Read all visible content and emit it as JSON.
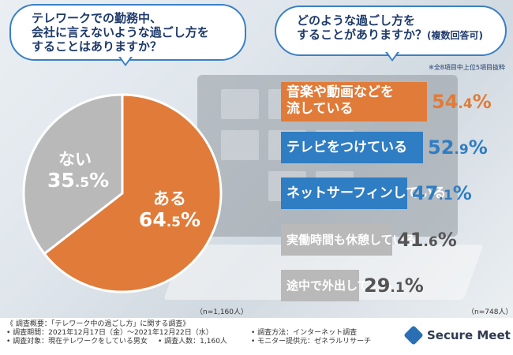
{
  "colors": {
    "accent_orange": "#e07b39",
    "accent_blue": "#2f7dc3",
    "neutral_gray": "#b9b9b9",
    "value_orange": "#e07b39",
    "value_blue": "#2f7dc3",
    "value_gray": "#555555"
  },
  "left_question": {
    "line1": "テレワークでの勤務中、",
    "line2": "会社に言えないような過ごし方を",
    "line3": "することはありますか？"
  },
  "right_question": {
    "line1": "どのような過ごし方を",
    "line2": "することがありますか？",
    "line2_suffix": "(複数回答可)"
  },
  "note": "※全8項目中上位5項目抜粋",
  "chart_data": [
    {
      "type": "pie",
      "title": "テレワークでの勤務中、会社に言えないような過ごし方をすることはありますか？",
      "slices": [
        {
          "label": "ある",
          "value": 64.5,
          "value_int": "64",
          "value_dec": ".5",
          "unit": "%"
        },
        {
          "label": "ない",
          "value": 35.5,
          "value_int": "35",
          "value_dec": ".5",
          "unit": "%"
        }
      ],
      "n_label": "（n=1,160人）"
    },
    {
      "type": "bar",
      "title": "どのような過ごし方をすることがありますか？(複数回答可)",
      "categories": [
        "音楽や動画などを流している",
        "テレビをつけている",
        "ネットサーフィンしている",
        "実働時間も休憩している",
        "途中で外出している"
      ],
      "values": [
        54.4,
        52.9,
        47.1,
        41.6,
        29.1
      ],
      "value_int": [
        "54",
        "52",
        "47",
        "41",
        "29"
      ],
      "value_dec": [
        ".4",
        ".9",
        ".1",
        ".6",
        ".1"
      ],
      "unit": "%",
      "label_lines": [
        [
          "音楽や動画などを",
          "流している"
        ],
        [
          "テレビをつけている"
        ],
        [
          "ネットサーフィンしている"
        ],
        [
          "実働時間も休憩している"
        ],
        [
          "途中で外出している"
        ]
      ],
      "n_label": "（n=748人）"
    }
  ],
  "footer": {
    "title": "《 調査概要：「テレワーク中の過ごし方」に関する調査》",
    "period": "• 調査期間：2021年12月17日（金）〜2021年12月22日（水）",
    "target": "• 調査対象：現在テレワークをしている男女",
    "count": "• 調査人数：1,160人",
    "method": "• 調査方法：インターネット調査",
    "provider": "• モニター提供元：ゼネラルリサーチ"
  },
  "brand": "Secure Meet"
}
